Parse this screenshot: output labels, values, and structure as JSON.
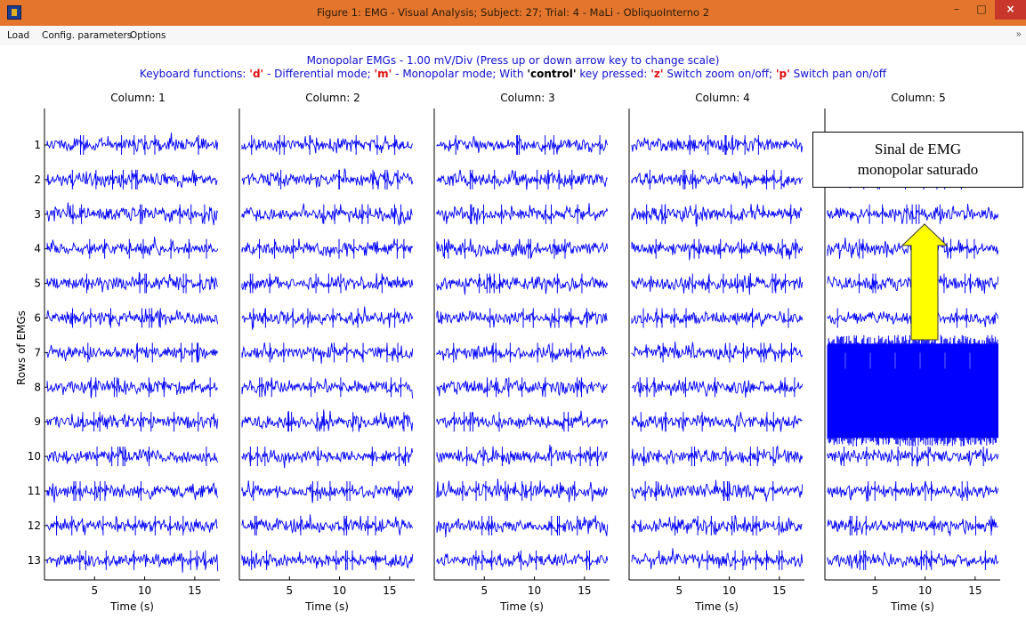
{
  "window": {
    "title": "Figure 1: EMG - Visual Analysis; Subject: 27; Trial: 4 - MaLi - ObliquoInterno 2",
    "minimize_label": "–",
    "maximize_label": "□",
    "close_label": "×"
  },
  "menu": {
    "items": [
      {
        "label": "Load"
      },
      {
        "label": "Config. parameters"
      },
      {
        "label": "Options"
      }
    ],
    "overflow": "»"
  },
  "header": {
    "line1": "Monopolar EMGs - 1.00 mV/Div (Press up or down arrow key to change scale)",
    "kb_prefix": "Keyboard functions: ",
    "kb_d": "'d'",
    "kb_d_text": " - Differential mode; ",
    "kb_m": "'m'",
    "kb_m_text": " - Monopolar mode; With ",
    "kb_control": "'control'",
    "kb_control_text": " key pressed: ",
    "kb_z": "'z'",
    "kb_z_text": " Switch zoom on/off; ",
    "kb_p": "'p'",
    "kb_p_text": " Switch pan on/off"
  },
  "columns": [
    "Column: 1",
    "Column: 2",
    "Column: 3",
    "Column: 4",
    "Column: 5"
  ],
  "ylabel": "Rows of EMGs",
  "xlabel": "Time (s)",
  "annotation": {
    "line1": "Sinal de EMG",
    "line2": "monopolar saturado",
    "arrow_color": "#ffff00"
  },
  "colors": {
    "signal": "#0000ff",
    "header_text": "#1010d0",
    "keyword": "#e01010",
    "titlebar": "#e3762c",
    "close_button": "#c9372c"
  },
  "chart_data": {
    "type": "line",
    "grid": false,
    "panels": 5,
    "rows": [
      "1",
      "2",
      "3",
      "4",
      "5",
      "6",
      "7",
      "8",
      "9",
      "10",
      "11",
      "12",
      "13"
    ],
    "x_ticks": [
      5,
      10,
      15
    ],
    "xlim": [
      0,
      17.5
    ],
    "saturated": {
      "column": 5,
      "rows": [
        "7",
        "8",
        "9"
      ]
    }
  }
}
